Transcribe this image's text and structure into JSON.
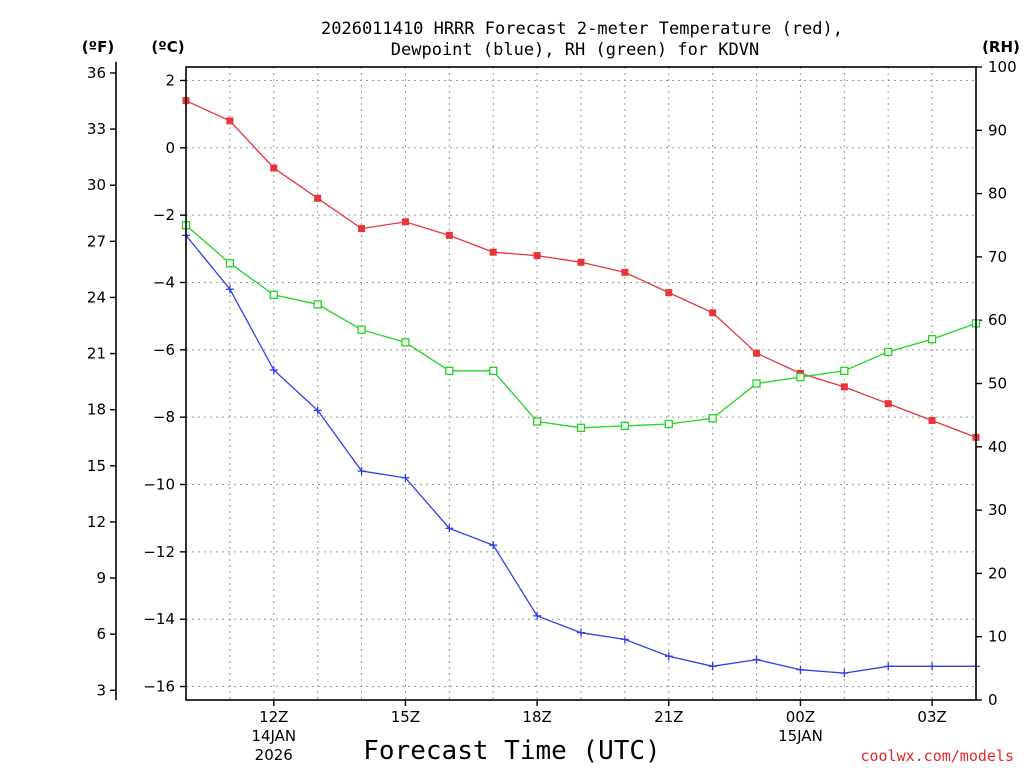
{
  "chart_data": {
    "type": "line",
    "title_line1": "2026011410 HRRR Forecast 2-meter Temperature (red),",
    "title_line2": "Dewpoint (blue), RH (green) for KDVN",
    "xlabel": "Forecast Time (UTC)",
    "credit": "coolwx.com/models",
    "units": {
      "fahrenheit": "(ºF)",
      "celsius": "(ºC)",
      "rh": "(RH)"
    },
    "x_hours": [
      10,
      11,
      12,
      13,
      14,
      15,
      16,
      17,
      18,
      19,
      20,
      21,
      22,
      23,
      24,
      25,
      26,
      27,
      28
    ],
    "x_ticks": [
      {
        "hour": 12,
        "label": "12Z",
        "sub1": "14JAN",
        "sub2": "2026"
      },
      {
        "hour": 15,
        "label": "15Z",
        "sub1": "",
        "sub2": ""
      },
      {
        "hour": 18,
        "label": "18Z",
        "sub1": "",
        "sub2": ""
      },
      {
        "hour": 21,
        "label": "21Z",
        "sub1": "",
        "sub2": ""
      },
      {
        "hour": 24,
        "label": "00Z",
        "sub1": "15JAN",
        "sub2": ""
      },
      {
        "hour": 27,
        "label": "03Z",
        "sub1": "",
        "sub2": ""
      }
    ],
    "xlim": [
      10,
      28
    ],
    "celsius_axis": {
      "ylim": [
        -16.4,
        2.4
      ],
      "ticks": [
        "2",
        "0",
        "−2",
        "−4",
        "−6",
        "−8",
        "−10",
        "−12",
        "−14",
        "−16"
      ],
      "tick_values": [
        2,
        0,
        -2,
        -4,
        -6,
        -8,
        -10,
        -12,
        -14,
        -16
      ]
    },
    "fahrenheit_axis": {
      "ticks": [
        "36",
        "33",
        "30",
        "27",
        "24",
        "21",
        "18",
        "15",
        "12",
        "9",
        "6",
        "3"
      ],
      "tick_values": [
        36,
        33,
        30,
        27,
        24,
        21,
        18,
        15,
        12,
        9,
        6,
        3
      ]
    },
    "rh_axis": {
      "ylim": [
        0,
        100
      ],
      "ticks": [
        "100",
        "90",
        "80",
        "70",
        "60",
        "50",
        "40",
        "30",
        "20",
        "10",
        "0"
      ],
      "tick_values": [
        100,
        90,
        80,
        70,
        60,
        50,
        40,
        30,
        20,
        10,
        0
      ]
    },
    "series": [
      {
        "name": "Temperature",
        "axis": "celsius",
        "color": "#e8343a",
        "marker": "filled-square",
        "values": [
          1.4,
          0.8,
          -0.6,
          -1.5,
          -2.4,
          -2.2,
          -2.6,
          -3.1,
          -3.2,
          -3.4,
          -3.7,
          -4.3,
          -4.9,
          -6.1,
          -6.7,
          -7.1,
          -7.6,
          -8.1,
          -8.6
        ]
      },
      {
        "name": "Dewpoint",
        "axis": "celsius",
        "color": "#2d3ee8",
        "marker": "plus",
        "values": [
          -2.6,
          -4.2,
          -6.6,
          -7.8,
          -9.6,
          -9.8,
          -11.3,
          -11.8,
          -13.9,
          -14.4,
          -14.6,
          -15.1,
          -15.4,
          -15.2,
          -15.5,
          -15.6,
          -15.4,
          -15.4,
          -15.4
        ]
      },
      {
        "name": "RH",
        "axis": "rh",
        "color": "#22d422",
        "marker": "open-square",
        "values": [
          75,
          69,
          64,
          62.5,
          58.5,
          56.5,
          52,
          52,
          44,
          43,
          43.3,
          43.6,
          44.5,
          50,
          51,
          52,
          55,
          57,
          59.5
        ]
      }
    ]
  }
}
